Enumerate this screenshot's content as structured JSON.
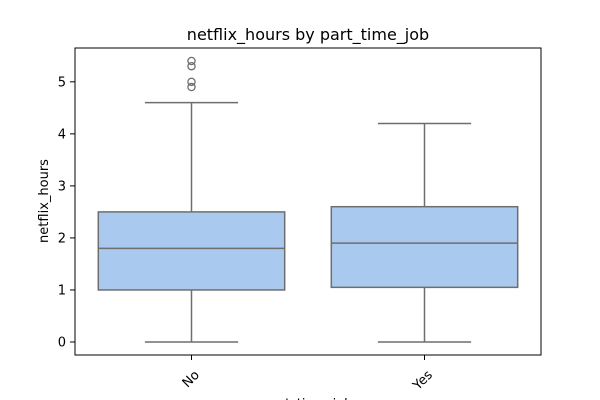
{
  "chart_data": {
    "type": "box",
    "title": "netflix_hours by part_time_job",
    "xlabel": "part_time_job",
    "ylabel": "netflix_hours",
    "ylim": [
      -0.25,
      5.65
    ],
    "yticks": [
      0,
      1,
      2,
      3,
      4,
      5
    ],
    "categories": [
      "No",
      "Yes"
    ],
    "boxes": [
      {
        "category": "No",
        "min": 0.0,
        "q1": 1.0,
        "median": 1.8,
        "q3": 2.5,
        "max": 4.6,
        "outliers": [
          4.9,
          5.0,
          5.3,
          5.4
        ]
      },
      {
        "category": "Yes",
        "min": 0.0,
        "q1": 1.05,
        "median": 1.9,
        "q3": 2.6,
        "max": 4.2,
        "outliers": []
      }
    ],
    "grid": false,
    "colors": {
      "box_fill": "#a9c9ee",
      "line": "#6e6e6e",
      "frame": "#000000"
    }
  }
}
